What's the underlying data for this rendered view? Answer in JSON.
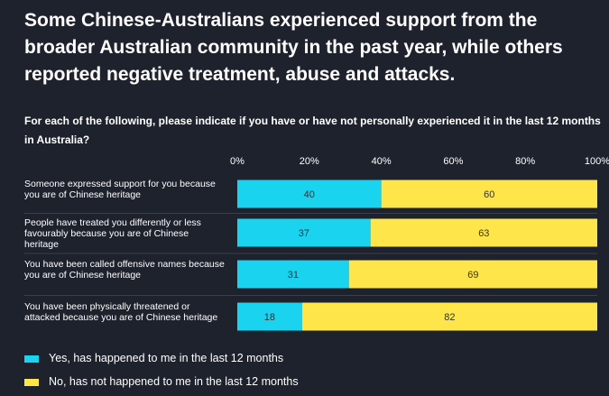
{
  "chart_data": {
    "type": "stacked_barh",
    "title": "Some Chinese-Australians experienced support from the broader Australian community in the past year, while others reported negative treatment, abuse and attacks.",
    "subtitle": "For each of the following, please indicate if you have or have not personally experienced it in the last 12 months in Australia?",
    "categories": [
      "Someone expressed support for you because you are of Chinese heritage",
      "People have treated you differently or less favourably because you are of Chinese heritage",
      "You have been called offensive names because you are of Chinese heritage",
      "You have been physically threatened or attacked because you are of Chinese heritage"
    ],
    "series": [
      {
        "name": "Yes, has happened to me in the last 12 months",
        "color": "#19d3ef",
        "values": [
          40,
          37,
          31,
          18
        ]
      },
      {
        "name": "No, has not happened to me in the last 12 months",
        "color": "#fde54a",
        "values": [
          60,
          63,
          69,
          82
        ]
      }
    ],
    "xlim": [
      0,
      100
    ],
    "xticks": [
      {
        "value": 0,
        "label": "0%"
      },
      {
        "value": 20,
        "label": "20%"
      },
      {
        "value": 40,
        "label": "40%"
      },
      {
        "value": 60,
        "label": "60%"
      },
      {
        "value": 80,
        "label": "80%"
      },
      {
        "value": 100,
        "label": "100%"
      }
    ]
  }
}
